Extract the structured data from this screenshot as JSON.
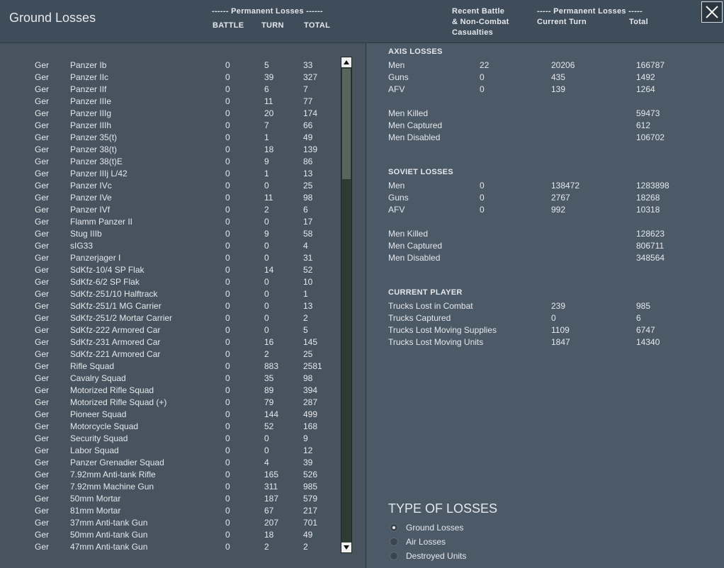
{
  "header": {
    "title": "Ground Losses",
    "left_group": "------ Permanent Losses ------",
    "columns": [
      "BATTLE",
      "TURN",
      "TOTAL"
    ],
    "right_col1": [
      "Recent Battle",
      "& Non-Combat",
      "Casualties"
    ],
    "right_group": "----- Permanent Losses -----",
    "right_columns": [
      "Current Turn",
      "Total"
    ]
  },
  "units": {
    "rows": [
      [
        "Ger",
        "Panzer Ib",
        0,
        5,
        33
      ],
      [
        "Ger",
        "Panzer IIc",
        0,
        39,
        327
      ],
      [
        "Ger",
        "Panzer IIf",
        0,
        6,
        7
      ],
      [
        "Ger",
        "Panzer IIIe",
        0,
        11,
        77
      ],
      [
        "Ger",
        "Panzer IIIg",
        0,
        20,
        174
      ],
      [
        "Ger",
        "Panzer IIIh",
        0,
        7,
        66
      ],
      [
        "Ger",
        "Panzer 35(t)",
        0,
        1,
        49
      ],
      [
        "Ger",
        "Panzer 38(t)",
        0,
        18,
        139
      ],
      [
        "Ger",
        "Panzer 38(t)E",
        0,
        9,
        86
      ],
      [
        "Ger",
        "Panzer IIIj L/42",
        0,
        1,
        13
      ],
      [
        "Ger",
        "Panzer IVc",
        0,
        0,
        25
      ],
      [
        "Ger",
        "Panzer IVe",
        0,
        11,
        98
      ],
      [
        "Ger",
        "Panzer IVf",
        0,
        2,
        6
      ],
      [
        "Ger",
        "Flamm Panzer II",
        0,
        0,
        17
      ],
      [
        "Ger",
        "Stug IIIb",
        0,
        9,
        58
      ],
      [
        "Ger",
        "sIG33",
        0,
        0,
        4
      ],
      [
        "Ger",
        "Panzerjager I",
        0,
        0,
        31
      ],
      [
        "Ger",
        "SdKfz-10/4 SP Flak",
        0,
        14,
        52
      ],
      [
        "Ger",
        "SdKfz-6/2 SP Flak",
        0,
        0,
        10
      ],
      [
        "Ger",
        "SdKfz-251/10 Halftrack",
        0,
        0,
        1
      ],
      [
        "Ger",
        "SdKfz-251/1 MG Carrier",
        0,
        0,
        13
      ],
      [
        "Ger",
        "SdKfz-251/2 Mortar Carrier",
        0,
        0,
        2
      ],
      [
        "Ger",
        "SdKfz-222 Armored Car",
        0,
        0,
        5
      ],
      [
        "Ger",
        "SdKfz-231 Armored Car",
        0,
        16,
        145
      ],
      [
        "Ger",
        "SdKfz-221 Armored Car",
        0,
        2,
        25
      ],
      [
        "Ger",
        "Rifle Squad",
        0,
        883,
        2581
      ],
      [
        "Ger",
        "Cavalry Squad",
        0,
        35,
        98
      ],
      [
        "Ger",
        "Motorized Rifle Squad",
        0,
        89,
        394
      ],
      [
        "Ger",
        "Motorized Rifle Squad (+)",
        0,
        79,
        287
      ],
      [
        "Ger",
        "Pioneer Squad",
        0,
        144,
        499
      ],
      [
        "Ger",
        "Motorcycle Squad",
        0,
        52,
        168
      ],
      [
        "Ger",
        "Security Squad",
        0,
        0,
        9
      ],
      [
        "Ger",
        "Labor Squad",
        0,
        0,
        12
      ],
      [
        "Ger",
        "Panzer Grenadier Squad",
        0,
        4,
        39
      ],
      [
        "Ger",
        "7.92mm Anti-tank Rifle",
        0,
        165,
        526
      ],
      [
        "Ger",
        "7.92mm Machine Gun",
        0,
        311,
        985
      ],
      [
        "Ger",
        "50mm Mortar",
        0,
        187,
        579
      ],
      [
        "Ger",
        "81mm Mortar",
        0,
        67,
        217
      ],
      [
        "Ger",
        "37mm Anti-tank Gun",
        0,
        207,
        701
      ],
      [
        "Ger",
        "50mm Anti-tank Gun",
        0,
        18,
        49
      ],
      [
        "Ger",
        "47mm Anti-tank Gun",
        0,
        2,
        2
      ]
    ]
  },
  "axis_losses": {
    "title": "AXIS LOSSES",
    "rows": [
      [
        "Men",
        22,
        20206,
        166787
      ],
      [
        "Guns",
        0,
        435,
        1492
      ],
      [
        "AFV",
        0,
        139,
        1264
      ]
    ],
    "breakdown": [
      [
        "Men Killed",
        59473
      ],
      [
        "Men Captured",
        612
      ],
      [
        "Men Disabled",
        106702
      ]
    ]
  },
  "soviet_losses": {
    "title": "SOVIET LOSSES",
    "rows": [
      [
        "Men",
        0,
        138472,
        1283898
      ],
      [
        "Guns",
        0,
        2767,
        18268
      ],
      [
        "AFV",
        0,
        992,
        10318
      ]
    ],
    "breakdown": [
      [
        "Men Killed",
        128623
      ],
      [
        "Men Captured",
        806711
      ],
      [
        "Men Disabled",
        348564
      ]
    ]
  },
  "current_player": {
    "title": "CURRENT PLAYER",
    "rows": [
      [
        "Trucks Lost in Combat",
        239,
        985
      ],
      [
        "Trucks Captured",
        0,
        6
      ],
      [
        "Trucks Lost Moving Supplies",
        1109,
        6747
      ],
      [
        "Trucks Lost Moving Units",
        1847,
        14340
      ]
    ]
  },
  "type_of_losses": {
    "title": "TYPE OF LOSSES",
    "options": [
      "Ground Losses",
      "Air Losses",
      "Destroyed Units"
    ],
    "selected": 0
  }
}
